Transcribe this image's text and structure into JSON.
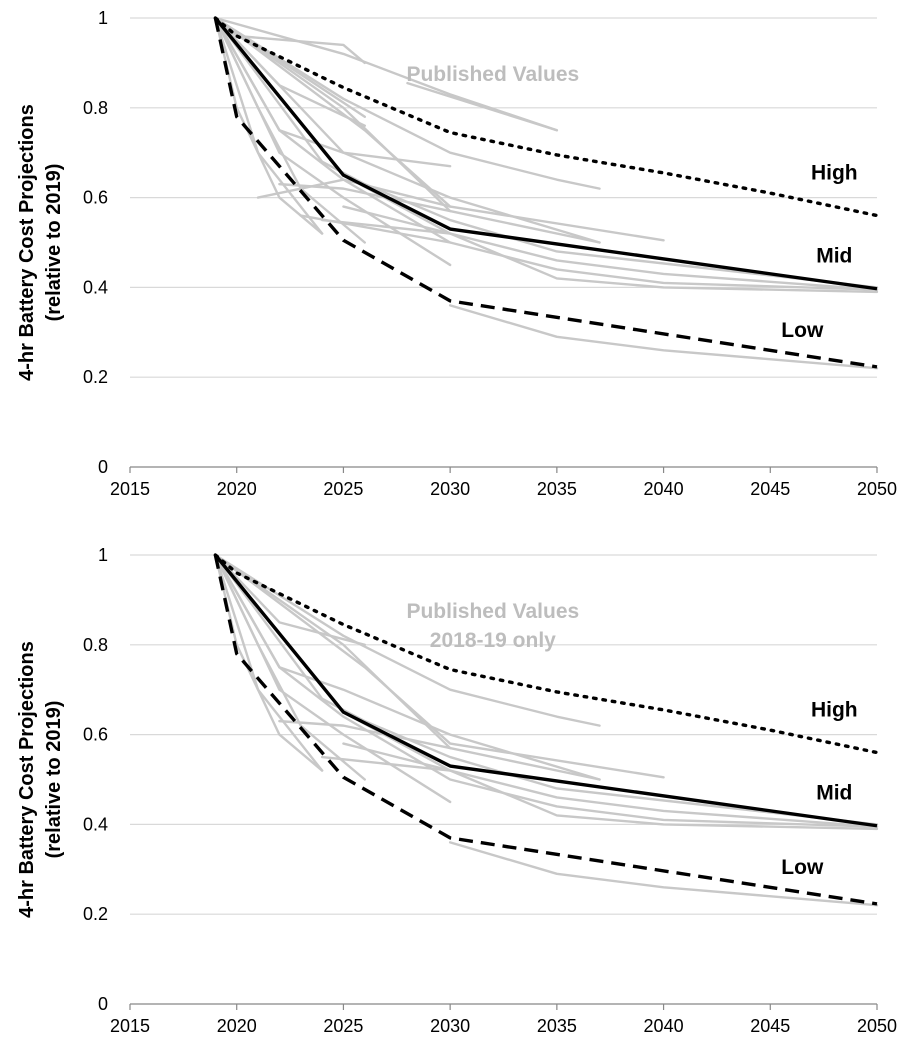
{
  "colors": {
    "grid": "#d9d9d9",
    "published": "#c8c8c8",
    "scenario": "#000000",
    "published_label": "#bdbdbd"
  },
  "chart_data": [
    {
      "type": "line",
      "ylabel": [
        "4-hr Battery Cost Projections",
        "(relative to 2019)"
      ],
      "xlim": [
        2015,
        2050
      ],
      "ylim": [
        0,
        1
      ],
      "x_ticks": [
        "2015",
        "2020",
        "2025",
        "2030",
        "2035",
        "2040",
        "2045",
        "2050"
      ],
      "y_ticks": [
        "0",
        "0.2",
        "0.4",
        "0.6",
        "0.8",
        "1"
      ],
      "grid": true,
      "annotations": [
        {
          "text": "Published Values",
          "x": 2032,
          "y": 0.86
        }
      ],
      "series": [
        {
          "name": "High",
          "style": "dotted",
          "label_pos": [
            2048,
            0.64
          ],
          "x": [
            2019,
            2020,
            2025,
            2030,
            2035,
            2040,
            2045,
            2050
          ],
          "y": [
            1.0,
            0.96,
            0.845,
            0.745,
            0.695,
            0.655,
            0.61,
            0.56
          ]
        },
        {
          "name": "Mid",
          "style": "solid",
          "label_pos": [
            2048,
            0.455
          ],
          "x": [
            2019,
            2025,
            2030,
            2050
          ],
          "y": [
            1.0,
            0.65,
            0.53,
            0.397
          ]
        },
        {
          "name": "Low",
          "style": "dashed",
          "label_pos": [
            2046.5,
            0.29
          ],
          "x": [
            2019,
            2020,
            2025,
            2030,
            2050
          ],
          "y": [
            1.0,
            0.78,
            0.505,
            0.37,
            0.223
          ]
        }
      ],
      "published": [
        {
          "x": [
            2019,
            2020,
            2025,
            2026
          ],
          "y": [
            1.0,
            0.96,
            0.94,
            0.9
          ]
        },
        {
          "x": [
            2019,
            2025,
            2030,
            2035
          ],
          "y": [
            1.0,
            0.92,
            0.83,
            0.75
          ]
        },
        {
          "x": [
            2028,
            2035
          ],
          "y": [
            0.855,
            0.75
          ]
        },
        {
          "x": [
            2019,
            2025,
            2030,
            2035,
            2037
          ],
          "y": [
            1.0,
            0.82,
            0.7,
            0.64,
            0.62
          ]
        },
        {
          "x": [
            2019,
            2026
          ],
          "y": [
            1.0,
            0.78
          ]
        },
        {
          "x": [
            2019,
            2022,
            2026
          ],
          "y": [
            1.0,
            0.85,
            0.76
          ]
        },
        {
          "x": [
            2019,
            2025,
            2030
          ],
          "y": [
            1.0,
            0.8,
            0.57
          ]
        },
        {
          "x": [
            2019,
            2026,
            2030,
            2040
          ],
          "y": [
            1.0,
            0.75,
            0.58,
            0.505
          ]
        },
        {
          "x": [
            2019,
            2022,
            2025,
            2030,
            2037
          ],
          "y": [
            1.0,
            0.75,
            0.7,
            0.6,
            0.5
          ]
        },
        {
          "x": [
            2019,
            2022,
            2025,
            2030
          ],
          "y": [
            1.0,
            0.7,
            0.6,
            0.45
          ]
        },
        {
          "x": [
            2019,
            2021,
            2023,
            2026
          ],
          "y": [
            1.0,
            0.8,
            0.62,
            0.5
          ]
        },
        {
          "x": [
            2019,
            2021,
            2024
          ],
          "y": [
            1.0,
            0.7,
            0.52
          ]
        },
        {
          "x": [
            2019,
            2020,
            2022,
            2024
          ],
          "y": [
            1.0,
            0.8,
            0.6,
            0.52
          ]
        },
        {
          "x": [
            2021,
            2025,
            2030
          ],
          "y": [
            0.6,
            0.64,
            0.58
          ]
        },
        {
          "x": [
            2022,
            2025,
            2030,
            2037
          ],
          "y": [
            0.63,
            0.62,
            0.57,
            0.5
          ]
        },
        {
          "x": [
            2019,
            2024,
            2026,
            2030,
            2035,
            2050
          ],
          "y": [
            1.0,
            0.68,
            0.63,
            0.55,
            0.48,
            0.4
          ]
        },
        {
          "x": [
            2019,
            2025,
            2030,
            2035,
            2040,
            2050
          ],
          "y": [
            1.0,
            0.65,
            0.52,
            0.46,
            0.43,
            0.395
          ]
        },
        {
          "x": [
            2019,
            2022,
            2025,
            2030,
            2035,
            2040,
            2050
          ],
          "y": [
            1.0,
            0.75,
            0.64,
            0.5,
            0.44,
            0.41,
            0.395
          ]
        },
        {
          "x": [
            2025,
            2030,
            2035,
            2040,
            2050
          ],
          "y": [
            0.58,
            0.52,
            0.42,
            0.4,
            0.39
          ]
        },
        {
          "x": [
            2024,
            2030
          ],
          "y": [
            0.55,
            0.52
          ]
        },
        {
          "x": [
            2023,
            2030
          ],
          "y": [
            0.56,
            0.5
          ]
        },
        {
          "x": [
            2019,
            2025,
            2030
          ],
          "y": [
            1.0,
            0.7,
            0.67
          ]
        },
        {
          "x": [
            2030,
            2035,
            2040,
            2050
          ],
          "y": [
            0.36,
            0.29,
            0.26,
            0.22
          ]
        }
      ]
    },
    {
      "type": "line",
      "ylabel": [
        "4-hr Battery Cost Projections",
        "(relative to 2019)"
      ],
      "xlim": [
        2015,
        2050
      ],
      "ylim": [
        0,
        1
      ],
      "x_ticks": [
        "2015",
        "2020",
        "2025",
        "2030",
        "2035",
        "2040",
        "2045",
        "2050"
      ],
      "y_ticks": [
        "0",
        "0.2",
        "0.4",
        "0.6",
        "0.8",
        "1"
      ],
      "grid": true,
      "annotations": [
        {
          "text": "Published Values",
          "x": 2032,
          "y": 0.86
        },
        {
          "text": "2018-19 only",
          "x": 2032,
          "y": 0.795
        }
      ],
      "series": [
        {
          "name": "High",
          "style": "dotted",
          "label_pos": [
            2048,
            0.64
          ],
          "x": [
            2019,
            2020,
            2025,
            2030,
            2035,
            2040,
            2045,
            2050
          ],
          "y": [
            1.0,
            0.96,
            0.845,
            0.745,
            0.695,
            0.655,
            0.61,
            0.56
          ]
        },
        {
          "name": "Mid",
          "style": "solid",
          "label_pos": [
            2048,
            0.455
          ],
          "x": [
            2019,
            2025,
            2030,
            2050
          ],
          "y": [
            1.0,
            0.65,
            0.53,
            0.397
          ]
        },
        {
          "name": "Low",
          "style": "dashed",
          "label_pos": [
            2046.5,
            0.29
          ],
          "x": [
            2019,
            2020,
            2025,
            2030,
            2050
          ],
          "y": [
            1.0,
            0.78,
            0.505,
            0.37,
            0.223
          ]
        }
      ],
      "published": [
        {
          "x": [
            2019,
            2025,
            2030,
            2035,
            2037
          ],
          "y": [
            1.0,
            0.82,
            0.7,
            0.64,
            0.62
          ]
        },
        {
          "x": [
            2019,
            2022,
            2026
          ],
          "y": [
            1.0,
            0.85,
            0.8
          ]
        },
        {
          "x": [
            2019,
            2025,
            2030
          ],
          "y": [
            1.0,
            0.8,
            0.57
          ]
        },
        {
          "x": [
            2019,
            2026,
            2030,
            2040
          ],
          "y": [
            1.0,
            0.75,
            0.58,
            0.505
          ]
        },
        {
          "x": [
            2019,
            2022,
            2025,
            2030,
            2037
          ],
          "y": [
            1.0,
            0.75,
            0.7,
            0.6,
            0.5
          ]
        },
        {
          "x": [
            2019,
            2022,
            2025,
            2030
          ],
          "y": [
            1.0,
            0.7,
            0.6,
            0.45
          ]
        },
        {
          "x": [
            2019,
            2021,
            2023,
            2026
          ],
          "y": [
            1.0,
            0.8,
            0.62,
            0.5
          ]
        },
        {
          "x": [
            2019,
            2021,
            2024
          ],
          "y": [
            1.0,
            0.7,
            0.52
          ]
        },
        {
          "x": [
            2019,
            2020,
            2022,
            2024
          ],
          "y": [
            1.0,
            0.8,
            0.6,
            0.52
          ]
        },
        {
          "x": [
            2022,
            2025,
            2030,
            2037
          ],
          "y": [
            0.63,
            0.62,
            0.57,
            0.5
          ]
        },
        {
          "x": [
            2019,
            2024,
            2026,
            2030,
            2035,
            2050
          ],
          "y": [
            1.0,
            0.68,
            0.63,
            0.55,
            0.48,
            0.4
          ]
        },
        {
          "x": [
            2019,
            2025,
            2030,
            2035,
            2040,
            2050
          ],
          "y": [
            1.0,
            0.65,
            0.52,
            0.46,
            0.43,
            0.395
          ]
        },
        {
          "x": [
            2019,
            2022,
            2025,
            2030,
            2035,
            2040,
            2050
          ],
          "y": [
            1.0,
            0.75,
            0.64,
            0.5,
            0.44,
            0.41,
            0.395
          ]
        },
        {
          "x": [
            2025,
            2030,
            2035,
            2040,
            2050
          ],
          "y": [
            0.58,
            0.52,
            0.42,
            0.4,
            0.39
          ]
        },
        {
          "x": [
            2024,
            2030
          ],
          "y": [
            0.55,
            0.52
          ]
        },
        {
          "x": [
            2030,
            2035,
            2040,
            2050
          ],
          "y": [
            0.36,
            0.29,
            0.26,
            0.22
          ]
        }
      ]
    }
  ]
}
